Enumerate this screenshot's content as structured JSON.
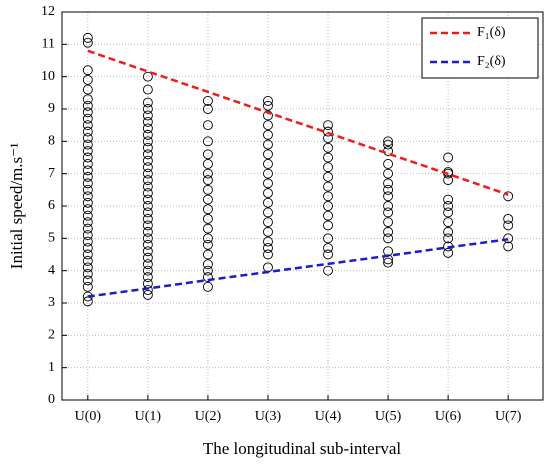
{
  "chart_data": {
    "type": "scatter",
    "xlabel": "The longitudinal sub-interval",
    "ylabel": "Initial speed/m.s⁻¹",
    "xlim": [
      -0.43,
      7.58
    ],
    "ylim": [
      0,
      12
    ],
    "xticks": [
      {
        "value": 0,
        "label": "U(0)"
      },
      {
        "value": 1,
        "label": "U(1)"
      },
      {
        "value": 2,
        "label": "U(2)"
      },
      {
        "value": 3,
        "label": "U(3)"
      },
      {
        "value": 4,
        "label": "U(4)"
      },
      {
        "value": 5,
        "label": "U(5)"
      },
      {
        "value": 6,
        "label": "U(6)"
      },
      {
        "value": 7,
        "label": "U(7)"
      }
    ],
    "yticks": [
      0,
      1,
      2,
      3,
      4,
      5,
      6,
      7,
      8,
      9,
      10,
      11,
      12
    ],
    "grid": true,
    "marker_color": "#000000",
    "groups": [
      {
        "x": 0,
        "values": [
          3.05,
          3.2,
          3.5,
          3.7,
          3.9,
          4.1,
          4.3,
          4.5,
          4.7,
          4.9,
          5.1,
          5.3,
          5.5,
          5.7,
          5.9,
          6.1,
          6.3,
          6.5,
          6.7,
          6.9,
          7.1,
          7.3,
          7.5,
          7.7,
          7.9,
          8.1,
          8.3,
          8.5,
          8.7,
          8.9,
          9.1,
          9.3,
          9.6,
          9.9,
          10.2,
          11.05,
          11.2
        ]
      },
      {
        "x": 1,
        "values": [
          3.25,
          3.4,
          3.6,
          3.8,
          4.0,
          4.2,
          4.4,
          4.6,
          4.8,
          5.0,
          5.2,
          5.4,
          5.6,
          5.8,
          6.0,
          6.2,
          6.4,
          6.6,
          6.8,
          7.0,
          7.2,
          7.4,
          7.6,
          7.8,
          8.0,
          8.2,
          8.4,
          8.6,
          8.8,
          9.0,
          9.2,
          9.6,
          10.0
        ]
      },
      {
        "x": 2,
        "values": [
          3.5,
          3.8,
          4.0,
          4.2,
          4.5,
          4.8,
          5.0,
          5.3,
          5.6,
          5.9,
          6.2,
          6.5,
          6.8,
          7.0,
          7.3,
          7.6,
          8.0,
          8.5,
          9.0,
          9.25
        ]
      },
      {
        "x": 3,
        "values": [
          4.1,
          4.5,
          4.7,
          4.9,
          5.2,
          5.5,
          5.8,
          6.1,
          6.4,
          6.7,
          7.0,
          7.3,
          7.6,
          7.9,
          8.2,
          8.5,
          8.8,
          9.1,
          9.25
        ]
      },
      {
        "x": 4,
        "values": [
          4.0,
          4.5,
          4.7,
          5.0,
          5.4,
          5.7,
          6.0,
          6.3,
          6.6,
          6.9,
          7.2,
          7.5,
          7.8,
          8.1,
          8.3,
          8.5
        ]
      },
      {
        "x": 5,
        "values": [
          4.25,
          4.35,
          4.6,
          5.0,
          5.2,
          5.5,
          5.8,
          6.0,
          6.3,
          6.5,
          6.7,
          7.0,
          7.3,
          7.7,
          7.9,
          8.0
        ]
      },
      {
        "x": 6,
        "values": [
          4.55,
          4.75,
          5.0,
          5.2,
          5.5,
          5.8,
          6.0,
          6.2,
          6.8,
          7.0,
          7.05,
          7.5
        ]
      },
      {
        "x": 7,
        "values": [
          4.75,
          5.0,
          5.4,
          5.6,
          6.3
        ]
      }
    ],
    "lines": [
      {
        "name": "F₁(δ)",
        "color": "#ee1c1c",
        "x": [
          0,
          1,
          2,
          3,
          4,
          5,
          6,
          7
        ],
        "values": [
          10.8,
          10.16,
          9.53,
          8.89,
          8.26,
          7.62,
          6.99,
          6.35
        ]
      },
      {
        "name": "F₂(δ)",
        "color": "#1c1ccc",
        "x": [
          0,
          1,
          2,
          3,
          4,
          5,
          6,
          7
        ],
        "values": [
          3.2,
          3.45,
          3.71,
          3.96,
          4.21,
          4.46,
          4.72,
          4.97
        ]
      }
    ]
  }
}
